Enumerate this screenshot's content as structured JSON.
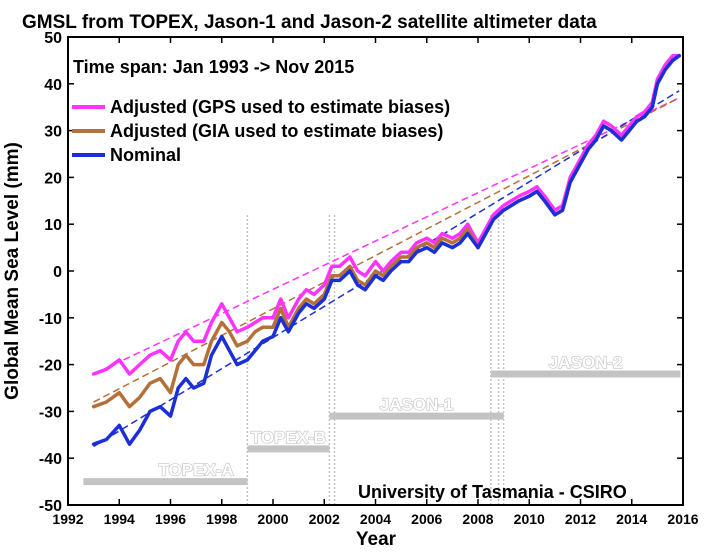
{
  "chart_data": {
    "type": "line",
    "title": "GMSL from TOPEX, Jason-1 and Jason-2 satellite altimeter data",
    "subtitle": "Time span: Jan 1993 -> Nov 2015",
    "credit": "University of Tasmania - CSIRO",
    "xlabel": "Year",
    "ylabel": "Global Mean Sea Level (mm)",
    "xlim": [
      1992,
      2016
    ],
    "ylim": [
      -50,
      50
    ],
    "xticks": [
      "1992",
      "1994",
      "1996",
      "1998",
      "2000",
      "2002",
      "2004",
      "2006",
      "2008",
      "2010",
      "2012",
      "2014",
      "2016"
    ],
    "yticks": [
      "-50",
      "-40",
      "-30",
      "-20",
      "-10",
      "0",
      "10",
      "20",
      "30",
      "40",
      "50"
    ],
    "grid": false,
    "legend_position": "top-left",
    "colors": {
      "gps": "#ff33ff",
      "gia": "#b5703a",
      "nominal": "#1a2fd6",
      "mission": "#c3c3c3"
    },
    "series": [
      {
        "name": "Adjusted (GPS used to estimate biases)",
        "key": "gps",
        "points": [
          [
            1993.0,
            -22
          ],
          [
            1993.5,
            -21
          ],
          [
            1994.0,
            -19
          ],
          [
            1994.4,
            -22
          ],
          [
            1994.8,
            -20
          ],
          [
            1995.2,
            -18
          ],
          [
            1995.6,
            -17
          ],
          [
            1996.0,
            -19
          ],
          [
            1996.3,
            -15
          ],
          [
            1996.6,
            -13
          ],
          [
            1996.9,
            -15
          ],
          [
            1997.3,
            -15
          ],
          [
            1997.6,
            -11
          ],
          [
            1998.0,
            -7
          ],
          [
            1998.3,
            -10
          ],
          [
            1998.6,
            -13
          ],
          [
            1999.0,
            -12
          ],
          [
            1999.3,
            -11
          ],
          [
            1999.6,
            -10
          ],
          [
            2000.0,
            -10
          ],
          [
            2000.3,
            -6
          ],
          [
            2000.6,
            -10
          ],
          [
            2001.0,
            -6
          ],
          [
            2001.3,
            -4
          ],
          [
            2001.6,
            -5
          ],
          [
            2002.0,
            -3
          ],
          [
            2002.3,
            1
          ],
          [
            2002.6,
            1
          ],
          [
            2003.0,
            3
          ],
          [
            2003.3,
            0
          ],
          [
            2003.6,
            -1
          ],
          [
            2004.0,
            2
          ],
          [
            2004.3,
            0
          ],
          [
            2004.6,
            2
          ],
          [
            2005.0,
            4
          ],
          [
            2005.3,
            4
          ],
          [
            2005.6,
            6
          ],
          [
            2006.0,
            7
          ],
          [
            2006.3,
            6
          ],
          [
            2006.6,
            8
          ],
          [
            2007.0,
            7
          ],
          [
            2007.3,
            8
          ],
          [
            2007.6,
            10
          ],
          [
            2008.0,
            6
          ],
          [
            2008.3,
            9
          ],
          [
            2008.6,
            12
          ],
          [
            2009.0,
            14
          ],
          [
            2009.3,
            15
          ],
          [
            2009.6,
            16
          ],
          [
            2010.0,
            17
          ],
          [
            2010.3,
            18
          ],
          [
            2010.6,
            16
          ],
          [
            2011.0,
            13
          ],
          [
            2011.3,
            14
          ],
          [
            2011.6,
            20
          ],
          [
            2012.0,
            24
          ],
          [
            2012.3,
            27
          ],
          [
            2012.6,
            29
          ],
          [
            2012.9,
            32
          ],
          [
            2013.2,
            31
          ],
          [
            2013.6,
            29
          ],
          [
            2013.9,
            31
          ],
          [
            2014.2,
            33
          ],
          [
            2014.5,
            34
          ],
          [
            2014.8,
            36
          ],
          [
            2015.0,
            41
          ],
          [
            2015.3,
            44
          ],
          [
            2015.6,
            46
          ],
          [
            2015.85,
            46
          ]
        ]
      },
      {
        "name": "Adjusted (GIA used to estimate biases)",
        "key": "gia",
        "points": [
          [
            1993.0,
            -29
          ],
          [
            1993.5,
            -28
          ],
          [
            1994.0,
            -26
          ],
          [
            1994.4,
            -29
          ],
          [
            1994.8,
            -27
          ],
          [
            1995.2,
            -24
          ],
          [
            1995.6,
            -23
          ],
          [
            1996.0,
            -26
          ],
          [
            1996.3,
            -20
          ],
          [
            1996.6,
            -18
          ],
          [
            1996.9,
            -20
          ],
          [
            1997.3,
            -20
          ],
          [
            1997.6,
            -15
          ],
          [
            1998.0,
            -11
          ],
          [
            1998.3,
            -13
          ],
          [
            1998.6,
            -16
          ],
          [
            1999.0,
            -15
          ],
          [
            1999.3,
            -13
          ],
          [
            1999.6,
            -12
          ],
          [
            2000.0,
            -12
          ],
          [
            2000.3,
            -8
          ],
          [
            2000.6,
            -12
          ],
          [
            2001.0,
            -8
          ],
          [
            2001.3,
            -6
          ],
          [
            2001.6,
            -7
          ],
          [
            2002.0,
            -5
          ],
          [
            2002.3,
            -1
          ],
          [
            2002.6,
            -1
          ],
          [
            2003.0,
            1
          ],
          [
            2003.3,
            -2
          ],
          [
            2003.6,
            -3
          ],
          [
            2004.0,
            0
          ],
          [
            2004.3,
            -1
          ],
          [
            2004.6,
            1
          ],
          [
            2005.0,
            3
          ],
          [
            2005.3,
            3
          ],
          [
            2005.6,
            5
          ],
          [
            2006.0,
            6
          ],
          [
            2006.3,
            5
          ],
          [
            2006.6,
            7
          ],
          [
            2007.0,
            6
          ],
          [
            2007.3,
            7
          ],
          [
            2007.6,
            9
          ],
          [
            2008.0,
            5
          ],
          [
            2008.3,
            8
          ],
          [
            2008.6,
            11
          ],
          [
            2009.0,
            13
          ],
          [
            2009.3,
            14
          ],
          [
            2009.6,
            15
          ],
          [
            2010.0,
            16
          ],
          [
            2010.3,
            17
          ],
          [
            2010.6,
            15
          ],
          [
            2011.0,
            12
          ],
          [
            2011.3,
            13
          ],
          [
            2011.6,
            19
          ],
          [
            2012.0,
            23
          ],
          [
            2012.3,
            26
          ],
          [
            2012.6,
            28
          ],
          [
            2012.9,
            31
          ],
          [
            2013.2,
            30
          ],
          [
            2013.6,
            28
          ],
          [
            2013.9,
            30
          ],
          [
            2014.2,
            32
          ],
          [
            2014.5,
            33
          ],
          [
            2014.8,
            35
          ],
          [
            2015.0,
            40
          ],
          [
            2015.3,
            43
          ],
          [
            2015.6,
            45
          ],
          [
            2015.85,
            46
          ]
        ]
      },
      {
        "name": "Nominal",
        "key": "nominal",
        "points": [
          [
            1993.0,
            -37
          ],
          [
            1993.5,
            -36
          ],
          [
            1994.0,
            -33
          ],
          [
            1994.4,
            -37
          ],
          [
            1994.8,
            -34
          ],
          [
            1995.2,
            -30
          ],
          [
            1995.6,
            -29
          ],
          [
            1996.0,
            -31
          ],
          [
            1996.3,
            -25
          ],
          [
            1996.6,
            -23
          ],
          [
            1996.9,
            -25
          ],
          [
            1997.3,
            -24
          ],
          [
            1997.6,
            -18
          ],
          [
            1998.0,
            -14
          ],
          [
            1998.3,
            -17
          ],
          [
            1998.6,
            -20
          ],
          [
            1999.0,
            -19
          ],
          [
            1999.3,
            -17
          ],
          [
            1999.6,
            -15
          ],
          [
            2000.0,
            -14
          ],
          [
            2000.3,
            -10
          ],
          [
            2000.6,
            -13
          ],
          [
            2001.0,
            -9
          ],
          [
            2001.3,
            -7
          ],
          [
            2001.6,
            -8
          ],
          [
            2002.0,
            -6
          ],
          [
            2002.3,
            -2
          ],
          [
            2002.6,
            -2
          ],
          [
            2003.0,
            0
          ],
          [
            2003.3,
            -3
          ],
          [
            2003.6,
            -4
          ],
          [
            2004.0,
            -1
          ],
          [
            2004.3,
            -2
          ],
          [
            2004.6,
            0
          ],
          [
            2005.0,
            2
          ],
          [
            2005.3,
            2
          ],
          [
            2005.6,
            4
          ],
          [
            2006.0,
            5
          ],
          [
            2006.3,
            4
          ],
          [
            2006.6,
            6
          ],
          [
            2007.0,
            5
          ],
          [
            2007.3,
            6
          ],
          [
            2007.6,
            8
          ],
          [
            2008.0,
            5
          ],
          [
            2008.3,
            8
          ],
          [
            2008.6,
            11
          ],
          [
            2009.0,
            13
          ],
          [
            2009.3,
            14
          ],
          [
            2009.6,
            15
          ],
          [
            2010.0,
            16
          ],
          [
            2010.3,
            17
          ],
          [
            2010.6,
            15
          ],
          [
            2011.0,
            12
          ],
          [
            2011.3,
            13
          ],
          [
            2011.6,
            19
          ],
          [
            2012.0,
            23
          ],
          [
            2012.3,
            26
          ],
          [
            2012.6,
            28
          ],
          [
            2012.9,
            31
          ],
          [
            2013.2,
            30
          ],
          [
            2013.6,
            28
          ],
          [
            2013.9,
            30
          ],
          [
            2014.2,
            32
          ],
          [
            2014.5,
            33
          ],
          [
            2014.8,
            35
          ],
          [
            2015.0,
            40
          ],
          [
            2015.3,
            43
          ],
          [
            2015.6,
            45
          ],
          [
            2015.85,
            46
          ]
        ]
      }
    ],
    "trends": [
      {
        "key": "gps",
        "from": [
          1993.0,
          -22
        ],
        "to": [
          2015.85,
          37
        ]
      },
      {
        "key": "gia",
        "from": [
          1993.0,
          -28
        ],
        "to": [
          2015.85,
          37
        ]
      },
      {
        "key": "nominal",
        "from": [
          1993.0,
          -37.5
        ],
        "to": [
          2015.85,
          38.5
        ]
      }
    ],
    "missions": [
      {
        "label": "TOPEX-A",
        "start": 1992.6,
        "end": 1999.0,
        "level": -45,
        "label_x": 1997.0
      },
      {
        "label": "TOPEX-B",
        "start": 1999.0,
        "end": 2002.2,
        "level": -38,
        "label_x": 2000.6
      },
      {
        "label": "JASON-1",
        "start": 2002.2,
        "end": 2009.0,
        "level": -31,
        "label_x": 2005.6
      },
      {
        "label": "JASON-2",
        "start": 2008.5,
        "end": 2015.9,
        "level": -22,
        "label_x": 2012.2
      }
    ],
    "mission_dividers": [
      1999.0,
      2002.2,
      2002.4,
      2008.5,
      2008.8,
      2009.0
    ]
  }
}
